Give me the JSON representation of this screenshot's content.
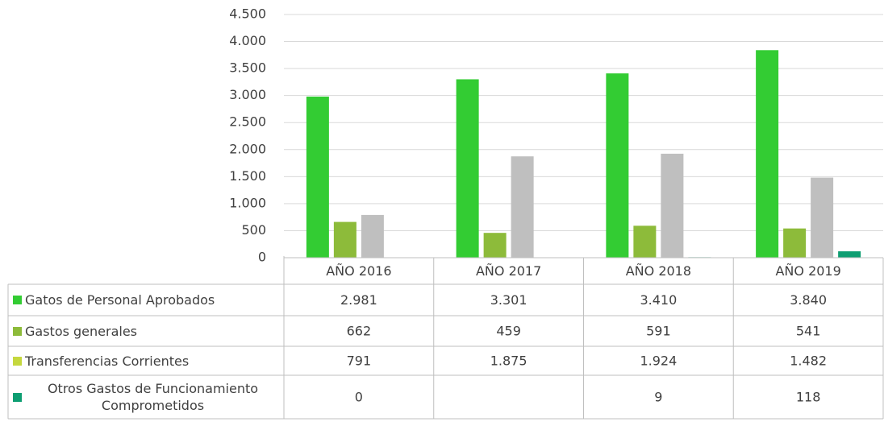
{
  "chart_data": {
    "type": "bar",
    "categories": [
      "AÑO 2016",
      "AÑO 2017",
      "AÑO 2018",
      "AÑO 2019"
    ],
    "series": [
      {
        "name": "Gatos de Personal Aprobados",
        "color": "#33cc33",
        "values": [
          2981,
          3301,
          3410,
          3840
        ],
        "value_labels": [
          "2.981",
          "3.301",
          "3.410",
          "3.840"
        ]
      },
      {
        "name": "Gastos generales",
        "color": "#8dbb3a",
        "values": [
          662,
          459,
          591,
          541
        ]
      },
      {
        "name": "Transferencias Corrientes",
        "color": "#bfbfbf",
        "legend_color": "#c5d83e",
        "values": [
          791,
          1875,
          1924,
          1482
        ],
        "value_labels": [
          "791",
          "1.875",
          "1.924",
          "1.482"
        ]
      },
      {
        "name": "Otros Gastos de Funcionamiento Comprometidos",
        "color": "#0e9e72",
        "values": [
          0,
          null,
          9,
          118
        ]
      }
    ],
    "ylim": [
      0,
      4500
    ],
    "yticks": [
      0,
      500,
      {
        "value": 1000,
        "label": "1.000"
      },
      {
        "value": 1500,
        "label": "1.500"
      },
      {
        "value": 2000,
        "label": "2.000"
      },
      {
        "value": 2500,
        "label": "2.500"
      },
      {
        "value": 3000,
        "label": "3.000"
      },
      {
        "value": 3500,
        "label": "3.500"
      },
      {
        "value": 4000,
        "label": "4.000"
      },
      {
        "value": 4500,
        "label": "4.500"
      }
    ],
    "grid": true,
    "data_table": true
  }
}
